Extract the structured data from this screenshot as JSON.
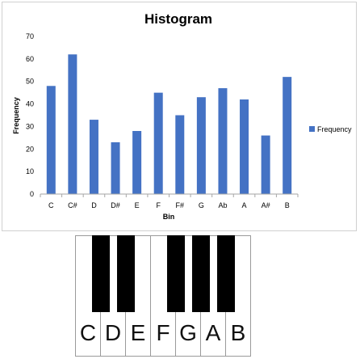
{
  "chart_data": {
    "type": "bar",
    "title": "Histogram",
    "xlabel": "Bin",
    "ylabel": "Frequency",
    "categories": [
      "C",
      "C#",
      "D",
      "D#",
      "E",
      "F",
      "F#",
      "G",
      "Ab",
      "A",
      "A#",
      "B"
    ],
    "series": [
      {
        "name": "Frequency",
        "values": [
          48,
          62,
          33,
          23,
          28,
          45,
          35,
          43,
          47,
          42,
          26,
          52
        ]
      }
    ],
    "ylim": [
      0,
      70
    ],
    "yticks": [
      "0",
      "10",
      "20",
      "30",
      "40",
      "50",
      "60",
      "70"
    ],
    "grid": false,
    "legend_position": "right",
    "bar_color": "#4472C4"
  },
  "keyboard": {
    "white_keys": [
      "C",
      "D",
      "E",
      "F",
      "G",
      "A",
      "B"
    ],
    "black_key_count": 5
  }
}
